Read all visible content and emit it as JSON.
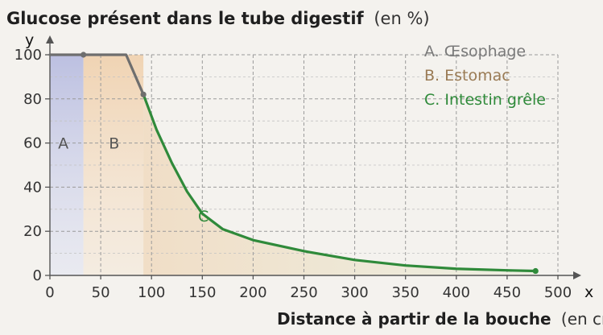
{
  "chart_data": {
    "type": "line",
    "title": "Glucose présent dans le tube digestif",
    "title_unit": "(en %)",
    "xlabel": "Distance à partir de la bouche",
    "xlabel_unit": "(en cm)",
    "y_axis_letter": "y",
    "x_axis_letter": "x",
    "xlim": [
      0,
      500
    ],
    "ylim": [
      0,
      100
    ],
    "x_ticks": [
      0,
      50,
      100,
      150,
      200,
      250,
      300,
      350,
      400,
      450,
      500
    ],
    "y_ticks": [
      0,
      20,
      40,
      60,
      80,
      100
    ],
    "grid": true,
    "legend_position": "top-right",
    "regions": [
      {
        "letter": "A",
        "name": "A. Œsophage",
        "x_start": 0,
        "x_end": 33,
        "color": "#c9cbe3"
      },
      {
        "letter": "B",
        "name": "B. Estomac",
        "x_start": 33,
        "x_end": 92,
        "color": "#eed8bf"
      },
      {
        "letter": "C",
        "name": "C. Intestin grêle",
        "x_start": 92,
        "x_end": 478,
        "color": "#e7e5d2"
      }
    ],
    "series": [
      {
        "color": "#6e6e6e",
        "x": [
          0,
          33,
          75,
          92
        ],
        "y": [
          100,
          100,
          100,
          82
        ]
      },
      {
        "color": "#2f8a3a",
        "x": [
          92,
          105,
          120,
          135,
          150,
          170,
          200,
          250,
          300,
          350,
          400,
          450,
          478
        ],
        "y": [
          82,
          66,
          51,
          38,
          28,
          21,
          16,
          11,
          7,
          4.5,
          3,
          2.3,
          2
        ]
      }
    ],
    "point_markers": [
      {
        "x": 33,
        "y": 100,
        "color": "#6e6e6e"
      },
      {
        "x": 92,
        "y": 82,
        "color": "#6e6e6e"
      },
      {
        "x": 478,
        "y": 2,
        "color": "#2f8a3a"
      }
    ],
    "curve_label": {
      "text": "C",
      "x": 130,
      "y": 27,
      "color": "#2f8a3a"
    },
    "legend_colors": [
      "#7a7a7a",
      "#9a7b55",
      "#2f8a3a"
    ]
  }
}
